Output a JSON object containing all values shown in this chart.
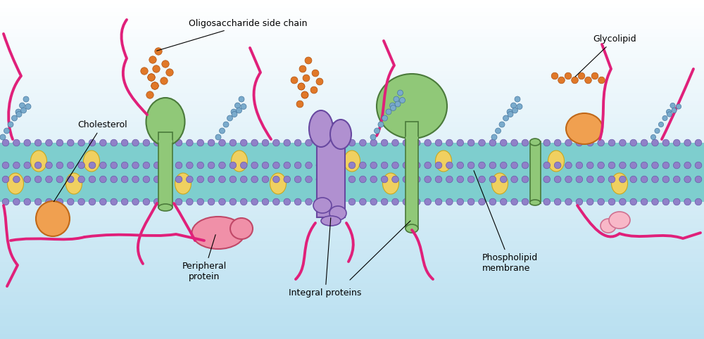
{
  "bg_top": "#ffffff",
  "bg_bottom": "#b8dff0",
  "mem_color": "#7ecece",
  "head_color": "#9080c8",
  "head_ec": "#6858a8",
  "chol_color": "#f0d060",
  "chol_ec": "#c8a820",
  "green_col": "#90c878",
  "green_ec": "#4a7a3a",
  "purple_col": "#b090d0",
  "purple_ec": "#6848a0",
  "orange_col": "#f0a050",
  "orange_ec": "#c06818",
  "pink_col": "#f090a8",
  "pink_ec": "#c04868",
  "lt_pink_col": "#f8b8c8",
  "lt_pink_ec": "#d07090",
  "oran_chain": "#e07828",
  "oran_chain_ec": "#b05010",
  "blue_chain": "#7aabcc",
  "blue_chain_ec": "#4878a0",
  "cytoskel": "#e0207a",
  "labels": {
    "cholesterol": "Cholesterol",
    "oligosaccharide": "Oligosaccharide side chain",
    "glycolipid": "Glycolipid",
    "peripheral": "Peripheral\nprotein",
    "integral": "Integral proteins",
    "phospholipid": "Phospholipid\nmembrane"
  },
  "figsize": [
    10,
    4.82
  ],
  "dpi": 100
}
